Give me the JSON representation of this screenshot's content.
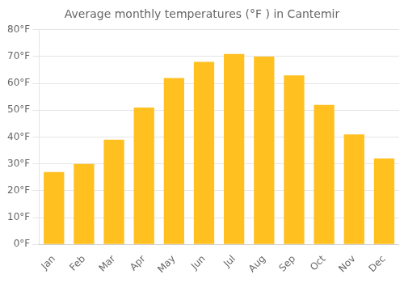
{
  "chart_data": {
    "type": "bar",
    "title": "Average monthly temperatures (°F ) in Cantemir",
    "categories": [
      "Jan",
      "Feb",
      "Mar",
      "Apr",
      "May",
      "Jun",
      "Jul",
      "Aug",
      "Sep",
      "Oct",
      "Nov",
      "Dec"
    ],
    "values": [
      27,
      30,
      39,
      51,
      62,
      68,
      71,
      70,
      63,
      52,
      41,
      32
    ],
    "color": "#FFC020",
    "ylim": [
      0,
      80
    ],
    "yticks": [
      {
        "value": 0,
        "label": "0°F"
      },
      {
        "value": 10,
        "label": "10°F"
      },
      {
        "value": 20,
        "label": "20°F"
      },
      {
        "value": 30,
        "label": "30°F"
      },
      {
        "value": 40,
        "label": "40°F"
      },
      {
        "value": 50,
        "label": "50°F"
      },
      {
        "value": 60,
        "label": "60°F"
      },
      {
        "value": 70,
        "label": "70°F"
      },
      {
        "value": 80,
        "label": "80°F"
      }
    ],
    "grid": true
  }
}
